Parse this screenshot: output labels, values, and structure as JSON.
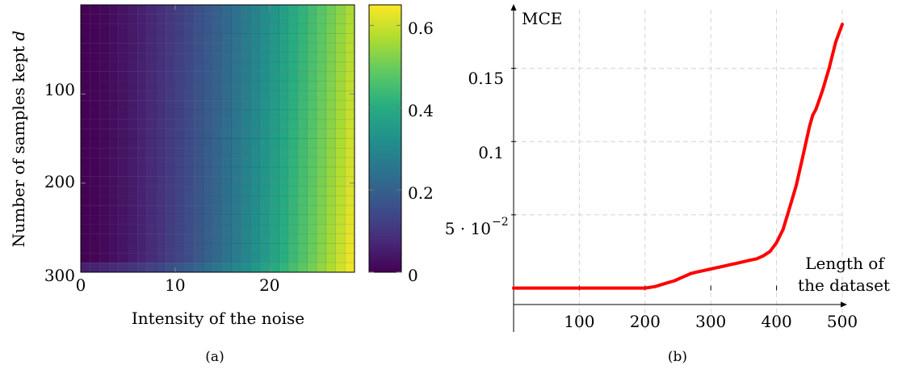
{
  "chart_data": [
    {
      "type": "heatmap",
      "caption": "(a)",
      "xlabel": "Intensity of the noise",
      "ylabel": "Number of samples kept d",
      "xlim": [
        0,
        29
      ],
      "ylim": [
        0,
        300
      ],
      "y_inverted": true,
      "xticks": [
        0,
        10,
        20
      ],
      "yticks": [
        100,
        200,
        300
      ],
      "grid_x_cells": 29,
      "grid_y_cells": 28,
      "colorbar": {
        "range": [
          0,
          0.65
        ],
        "ticks": [
          "0",
          "0.2",
          "0.4",
          "0.6"
        ],
        "tick_values": [
          0,
          0.2,
          0.4,
          0.6
        ],
        "colormap": "viridis"
      },
      "value_model": {
        "description": "value grows with noise intensity, slightly higher for fewer samples",
        "at_x0": 0.0,
        "at_x29_top": 0.58,
        "at_x29_bottom": 0.65
      }
    },
    {
      "type": "line",
      "caption": "(b)",
      "title": "MCE",
      "xlabel_line1": "Length of",
      "xlabel_line2": "the dataset",
      "xlim": [
        0,
        500
      ],
      "ylim": [
        -0.03,
        0.19
      ],
      "xticks": [
        100,
        200,
        300,
        400,
        500
      ],
      "yticks": [
        0.05,
        0.1,
        0.15
      ],
      "ytick_labels": [
        "5 · 10",
        "0.1",
        "0.15"
      ],
      "ytick_exponent": "−2",
      "grid": true,
      "series": [
        {
          "color": "#ff0000",
          "x": [
            0,
            50,
            100,
            150,
            200,
            215,
            230,
            245,
            260,
            270,
            280,
            290,
            300,
            310,
            320,
            330,
            340,
            350,
            360,
            370,
            380,
            390,
            400,
            410,
            420,
            430,
            440,
            450,
            455,
            460,
            470,
            480,
            490,
            500
          ],
          "y": [
            0,
            0,
            0,
            0,
            0,
            0.001,
            0.003,
            0.005,
            0.008,
            0.01,
            0.011,
            0.012,
            0.013,
            0.014,
            0.015,
            0.016,
            0.017,
            0.018,
            0.019,
            0.02,
            0.022,
            0.025,
            0.031,
            0.04,
            0.055,
            0.07,
            0.09,
            0.11,
            0.118,
            0.122,
            0.135,
            0.15,
            0.168,
            0.18
          ]
        }
      ]
    }
  ]
}
